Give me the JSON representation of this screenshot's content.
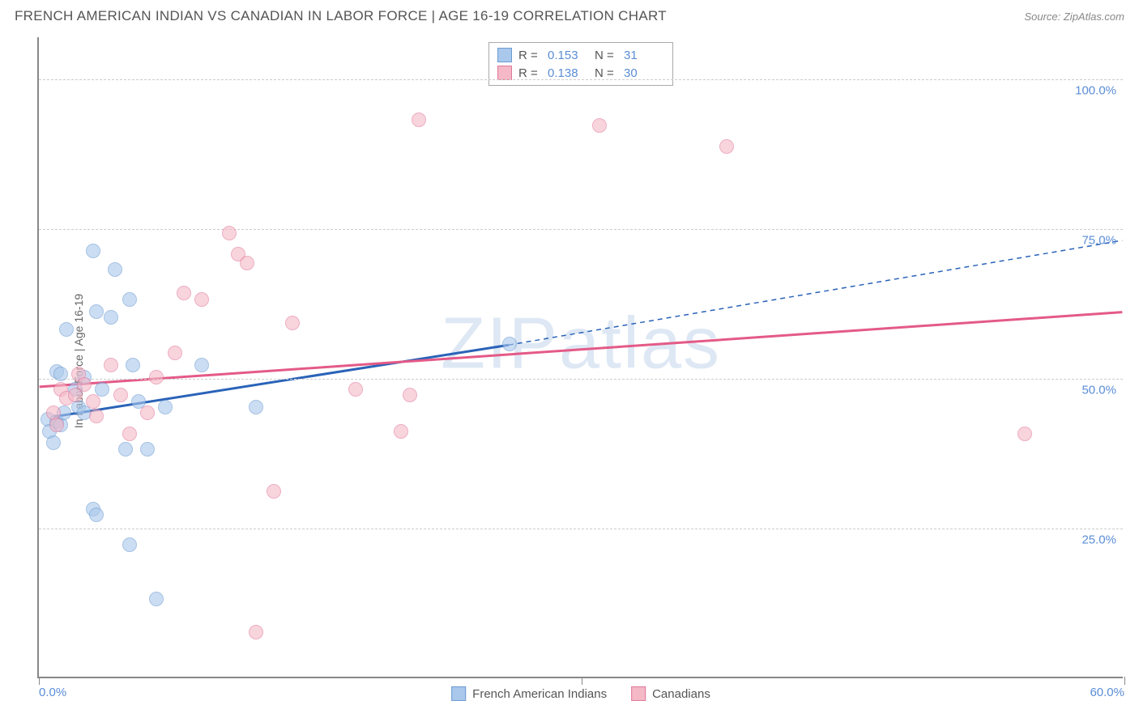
{
  "title": "FRENCH AMERICAN INDIAN VS CANADIAN IN LABOR FORCE | AGE 16-19 CORRELATION CHART",
  "source_label": "Source: ",
  "source_name": "ZipAtlas.com",
  "watermark": "ZIPatlas",
  "ylabel": "In Labor Force | Age 16-19",
  "chart": {
    "type": "scatter",
    "xlim": [
      0,
      60
    ],
    "ylim": [
      0,
      107
    ],
    "x_ticks": [
      0,
      30,
      60
    ],
    "x_tick_labels": [
      "0.0%",
      "",
      "60.0%"
    ],
    "y_grid": [
      25,
      50,
      75,
      100
    ],
    "y_tick_labels": [
      "25.0%",
      "50.0%",
      "75.0%",
      "100.0%"
    ],
    "background_color": "#ffffff",
    "grid_color": "#cccccc",
    "axis_color": "#888888",
    "tick_label_color": "#5b8dd6",
    "series": [
      {
        "name": "French American Indians",
        "fill": "#a9c8ec",
        "stroke": "#6b9bd1",
        "R": "0.153",
        "N": "31",
        "trend": {
          "x1": 0.8,
          "y1": 43.5,
          "x2": 26,
          "y2": 55.5,
          "color": "#2a63b8",
          "width": 3,
          "dash_extend_x": 60,
          "dash_extend_y": 73
        },
        "points": [
          [
            0.5,
            43
          ],
          [
            0.6,
            41
          ],
          [
            0.8,
            39
          ],
          [
            1.0,
            42.5
          ],
          [
            1.2,
            42
          ],
          [
            1.4,
            44
          ],
          [
            1.0,
            51
          ],
          [
            1.2,
            50.5
          ],
          [
            2.0,
            48
          ],
          [
            2.2,
            45
          ],
          [
            2.5,
            44
          ],
          [
            3.0,
            71
          ],
          [
            3.2,
            61
          ],
          [
            4.0,
            60
          ],
          [
            4.2,
            68
          ],
          [
            5.0,
            63
          ],
          [
            5.5,
            46
          ],
          [
            6.0,
            38
          ],
          [
            4.8,
            38
          ],
          [
            5.2,
            52
          ],
          [
            7.0,
            45
          ],
          [
            9.0,
            52
          ],
          [
            3.0,
            28
          ],
          [
            3.2,
            27
          ],
          [
            5.0,
            22
          ],
          [
            6.5,
            13
          ],
          [
            2.5,
            50
          ],
          [
            3.5,
            48
          ],
          [
            12.0,
            45
          ],
          [
            26.0,
            55.5
          ],
          [
            1.5,
            58
          ]
        ]
      },
      {
        "name": "Canadians",
        "fill": "#f4b8c7",
        "stroke": "#e2799a",
        "R": "0.138",
        "N": "30",
        "trend": {
          "x1": 0,
          "y1": 48.5,
          "x2": 60,
          "y2": 61,
          "color": "#e45a87",
          "width": 3
        },
        "points": [
          [
            0.8,
            44
          ],
          [
            1.2,
            48
          ],
          [
            1.5,
            46.5
          ],
          [
            2.0,
            47
          ],
          [
            2.2,
            50.5
          ],
          [
            2.5,
            48.8
          ],
          [
            3.0,
            46
          ],
          [
            3.2,
            43.5
          ],
          [
            4.0,
            52
          ],
          [
            5.0,
            40.5
          ],
          [
            6.0,
            44
          ],
          [
            7.5,
            54
          ],
          [
            8.0,
            64
          ],
          [
            9.0,
            63
          ],
          [
            10.5,
            74
          ],
          [
            11.0,
            70.5
          ],
          [
            11.5,
            69
          ],
          [
            14.0,
            59
          ],
          [
            13.0,
            31
          ],
          [
            12.0,
            7.5
          ],
          [
            17.5,
            48
          ],
          [
            20.0,
            41
          ],
          [
            20.5,
            47
          ],
          [
            21.0,
            93
          ],
          [
            38.0,
            88.5
          ],
          [
            31.0,
            92
          ],
          [
            54.5,
            40.5
          ],
          [
            1.0,
            42
          ],
          [
            4.5,
            47
          ],
          [
            6.5,
            50
          ]
        ]
      }
    ]
  },
  "legend_top": {
    "r_label": "R =",
    "n_label": "N ="
  },
  "legend_bottom": {
    "items": [
      "French American Indians",
      "Canadians"
    ]
  }
}
